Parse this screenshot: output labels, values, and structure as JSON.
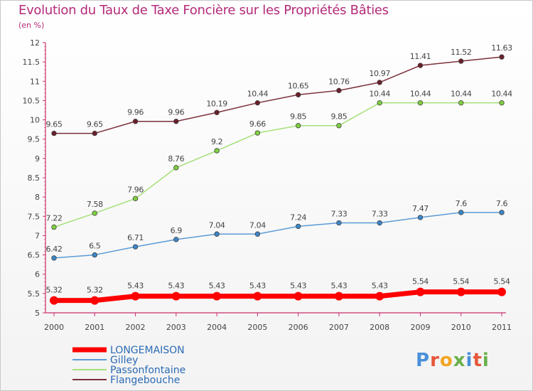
{
  "header": {
    "title": "Evolution du Taux de Taxe Foncière sur les Propriétés Bâties",
    "subtitle": "(en %)"
  },
  "logo": {
    "text": "Proxiti",
    "colors": [
      "#4a90d9",
      "#e6563a",
      "#f2a422",
      "#6ab04c",
      "#4a90d9",
      "#e6563a",
      "#6ab04c"
    ]
  },
  "chart_data": {
    "type": "line",
    "title": "Evolution du Taux de Taxe Foncière sur les Propriétés Bâties",
    "ylabel": "(en %)",
    "categories": [
      "2000",
      "2001",
      "2002",
      "2003",
      "2004",
      "2005",
      "2006",
      "2007",
      "2008",
      "2009",
      "2010",
      "2011"
    ],
    "ylim": [
      5,
      12
    ],
    "yticks": [
      "5",
      "5.5",
      "6",
      "6.5",
      "7",
      "7.5",
      "8",
      "8.5",
      "9",
      "9.5",
      "10",
      "10.5",
      "11",
      "11.5",
      "12"
    ],
    "grid": false,
    "legend_position": "bottom-left",
    "series": [
      {
        "name": "LONGEMAISON",
        "color": "#ff0000",
        "bold": true,
        "values": [
          5.32,
          5.32,
          5.43,
          5.43,
          5.43,
          5.43,
          5.43,
          5.43,
          5.43,
          5.54,
          5.54,
          5.54
        ],
        "labels": [
          "5.32",
          "5.32",
          "5.43",
          "5.43",
          "5.43",
          "5.43",
          "5.43",
          "5.43",
          "5.43",
          "5.54",
          "5.54",
          "5.54"
        ]
      },
      {
        "name": "Gilley",
        "color": "#5b9bd5",
        "marker": "#3b86c8",
        "values": [
          6.42,
          6.5,
          6.71,
          6.9,
          7.04,
          7.04,
          7.24,
          7.33,
          7.33,
          7.47,
          7.6,
          7.6
        ],
        "labels": [
          "6.42",
          "6.5",
          "6.71",
          "6.9",
          "7.04",
          "7.04",
          "7.24",
          "7.33",
          "7.33",
          "7.47",
          "7.6",
          "7.6"
        ]
      },
      {
        "name": "Passonfontaine",
        "color": "#a6e07a",
        "marker": "#7fcf3f",
        "values": [
          7.22,
          7.58,
          7.96,
          8.76,
          9.2,
          9.66,
          9.85,
          9.85,
          10.44,
          10.44,
          10.44,
          10.44
        ],
        "labels": [
          "7.22",
          "7.58",
          "7.96",
          "8.76",
          "9.2",
          "9.66",
          "9.85",
          "9.85",
          "10.44",
          "10.44",
          "10.44",
          "10.44"
        ]
      },
      {
        "name": "Flangebouche",
        "color": "#7b2f3a",
        "marker": "#6a1f2a",
        "values": [
          9.65,
          9.65,
          9.96,
          9.96,
          10.19,
          10.44,
          10.65,
          10.76,
          10.97,
          11.41,
          11.52,
          11.63
        ],
        "labels": [
          "9.65",
          "9.65",
          "9.96",
          "9.96",
          "10.19",
          "10.44",
          "10.65",
          "10.76",
          "10.97",
          "11.41",
          "11.52",
          "11.63"
        ]
      }
    ]
  }
}
